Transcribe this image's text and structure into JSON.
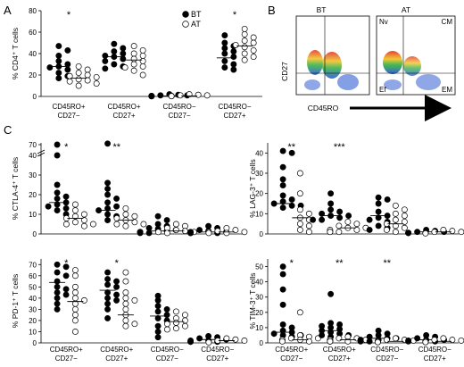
{
  "panels": {
    "a": "A",
    "b": "B",
    "c": "C"
  },
  "categories_a": [
    "CD45RO+\nCD27−",
    "CD45RO+\nCD27+",
    "CD45RO−\nCD27−",
    "CD45RO−\nCD27+"
  ],
  "categories_c": [
    "CD45RO+\nCD27−",
    "CD45RO+\nCD27+",
    "CD45RO−\nCD27−",
    "CD45RO−\nCD27+"
  ],
  "legend": [
    {
      "name": "BT",
      "marker": "filled-circle"
    },
    {
      "name": "AT",
      "marker": "open-circle"
    }
  ],
  "flow": {
    "ylabel": "CD27",
    "xlabel": "CD45RO",
    "plots": [
      {
        "title": "BT",
        "quadrants": [
          "",
          "",
          "",
          ""
        ]
      },
      {
        "title": "AT",
        "quadrants": [
          "Nv",
          "CM",
          "Ef",
          "EM"
        ]
      }
    ]
  },
  "chart_data": [
    {
      "id": "A",
      "type": "scatter",
      "ylabel": "% CD4⁺ T cells",
      "ylim": [
        0,
        80
      ],
      "yticks": [
        "0",
        "20",
        "40",
        "60",
        "80"
      ],
      "significance": [
        "*",
        "",
        "",
        "*"
      ],
      "series": [
        {
          "name": "BT",
          "groups": [
            [
              47,
              43,
              38,
              33,
              30,
              28,
              27,
              25,
              22,
              19,
              17
            ],
            [
              49,
              45,
              42,
              40,
              38,
              37,
              35,
              33,
              30,
              28,
              26
            ],
            [
              2,
              1.5,
              1,
              1,
              0.5,
              0.5,
              0.3,
              0.3,
              0.2
            ],
            [
              57,
              50,
              47,
              45,
              42,
              40,
              37,
              33,
              30,
              27,
              25
            ]
          ],
          "medians": [
            28,
            37,
            0.5,
            36
          ]
        },
        {
          "name": "AT",
          "groups": [
            [
              28,
              25,
              22,
              20,
              19,
              18,
              16,
              15,
              14,
              12,
              10
            ],
            [
              47,
              43,
              40,
              38,
              35,
              33,
              30,
              28,
              27,
              24,
              20
            ],
            [
              2,
              1.5,
              1,
              1,
              0.5,
              0.5,
              0.3,
              0.3
            ],
            [
              63,
              58,
              55,
              52,
              50,
              48,
              46,
              43,
              40,
              37,
              34
            ]
          ],
          "medians": [
            17,
            34,
            0.5,
            47
          ]
        }
      ]
    },
    {
      "id": "CTLA4",
      "type": "scatter",
      "ylabel": "% CTLA-4⁺ T cells",
      "y_axis": "broken",
      "yticks": [
        "0",
        "10",
        "20",
        "30",
        "40",
        "70"
      ],
      "significance": [
        "*",
        "**",
        "",
        ""
      ],
      "series": [
        {
          "name": "BT",
          "groups": [
            [
              70,
              40,
              25,
              21,
              19,
              18,
              16,
              15,
              14,
              13,
              12,
              10
            ],
            [
              46,
              26,
              23,
              20,
              18,
              16,
              14,
              13,
              12,
              10,
              9,
              7
            ],
            [
              9,
              7,
              5,
              4,
              3,
              2.5,
              2,
              1.5,
              1,
              1,
              0.5,
              0.5
            ],
            [
              4,
              3,
              2,
              1.5,
              1,
              1,
              0.5,
              0.5,
              0.5
            ]
          ],
          "medians": [
            16,
            12,
            1.5,
            1
          ]
        },
        {
          "name": "AT",
          "groups": [
            [
              15,
              12,
              10,
              9,
              8,
              7,
              6,
              5,
              5,
              4
            ],
            [
              13,
              10,
              9,
              8,
              7,
              6,
              5,
              5,
              4
            ],
            [
              5,
              4,
              3,
              2,
              1.5,
              1,
              1,
              0.5
            ],
            [
              3,
              2,
              1.5,
              1,
              1,
              0.5,
              0.5
            ]
          ],
          "medians": [
            8,
            7,
            1.5,
            1
          ]
        }
      ]
    },
    {
      "id": "LAG3",
      "type": "scatter",
      "ylabel": "% LAG-3⁺ T cells",
      "ylim": [
        0,
        45
      ],
      "yticks": [
        "0",
        "10",
        "20",
        "30",
        "40"
      ],
      "significance": [
        "**",
        "***",
        "",
        ""
      ],
      "series": [
        {
          "name": "BT",
          "groups": [
            [
              41,
              40,
              33,
              27,
              24,
              19,
              17,
              16,
              15,
              14,
              14,
              13
            ],
            [
              20,
              15,
              12,
              11,
              10,
              9,
              9,
              8,
              7,
              7
            ],
            [
              18,
              17,
              15,
              11,
              9,
              8,
              7,
              6,
              4,
              3,
              2
            ],
            [
              2,
              1.5,
              1,
              1,
              0.5,
              0.5,
              0.5
            ]
          ],
          "medians": [
            15,
            9,
            9,
            1
          ]
        },
        {
          "name": "AT",
          "groups": [
            [
              30,
              20,
              12,
              10,
              8,
              7,
              5,
              4,
              2,
              1
            ],
            [
              6,
              5,
              4,
              3,
              3,
              2,
              2,
              1,
              1,
              1
            ],
            [
              14,
              12,
              10,
              9,
              7,
              6,
              5,
              4,
              3,
              2,
              1
            ],
            [
              2,
              1.5,
              1,
              1,
              0.5,
              0.5,
              0.5,
              0.3
            ]
          ],
          "medians": [
            8,
            3,
            5,
            1
          ]
        }
      ]
    },
    {
      "id": "PD1",
      "type": "scatter",
      "ylabel": "% PD-1⁺ T cells",
      "ylim": [
        0,
        75
      ],
      "yticks": [
        "0",
        "10",
        "20",
        "30",
        "40",
        "50",
        "60",
        "70"
      ],
      "significance": [
        "*",
        "*",
        "",
        ""
      ],
      "series": [
        {
          "name": "BT",
          "groups": [
            [
              70,
              68,
              63,
              60,
              55,
              50,
              48,
              45,
              43,
              40,
              35,
              30
            ],
            [
              63,
              57,
              55,
              52,
              50,
              45,
              43,
              40,
              38,
              35,
              30,
              22
            ],
            [
              42,
              38,
              33,
              30,
              28,
              25,
              22,
              20,
              15,
              10,
              5
            ],
            [
              6,
              5,
              4,
              3,
              2,
              2,
              1,
              1,
              1
            ]
          ],
          "medians": [
            54,
            47,
            24,
            3
          ]
        },
        {
          "name": "AT",
          "groups": [
            [
              65,
              60,
              50,
              45,
              40,
              38,
              35,
              30,
              25,
              20,
              10
            ],
            [
              63,
              55,
              45,
              40,
              38,
              35,
              30,
              25,
              20,
              17,
              15
            ],
            [
              28,
              25,
              22,
              20,
              18,
              17,
              15,
              13,
              12
            ],
            [
              4,
              3,
              2,
              2,
              1,
              1,
              1,
              0.5
            ]
          ],
          "medians": [
            37,
            25,
            19,
            2
          ]
        }
      ]
    },
    {
      "id": "TIM3",
      "type": "scatter",
      "ylabel": "% TIM-3⁺ T cells",
      "ylim": [
        0,
        55
      ],
      "yticks": [
        "0",
        "10",
        "20",
        "30",
        "40",
        "50"
      ],
      "significance": [
        "*",
        "**",
        "**",
        ""
      ],
      "series": [
        {
          "name": "BT",
          "groups": [
            [
              50,
              45,
              35,
              25,
              12,
              10,
              8,
              7,
              6,
              5,
              5,
              4
            ],
            [
              32,
              13,
              12,
              11,
              10,
              9,
              8,
              7,
              6,
              5,
              5,
              4
            ],
            [
              8,
              6,
              5,
              4,
              3,
              3,
              2,
              2,
              1,
              1
            ],
            [
              5,
              4,
              3,
              2,
              2,
              1.5,
              1,
              1
            ]
          ],
          "medians": [
            7,
            8,
            3,
            2
          ]
        },
        {
          "name": "AT",
          "groups": [
            [
              20,
              5,
              4,
              3,
              3,
              2,
              2,
              2,
              1,
              1
            ],
            [
              4,
              3,
              3,
              2,
              2,
              2,
              1,
              1,
              1,
              1
            ],
            [
              3,
              2,
              2,
              1.5,
              1,
              1,
              1,
              0.5,
              0.5
            ],
            [
              3,
              2,
              2,
              1.5,
              1,
              1,
              0.5,
              0.5
            ]
          ],
          "medians": [
            2,
            2,
            1,
            1
          ]
        }
      ]
    }
  ]
}
